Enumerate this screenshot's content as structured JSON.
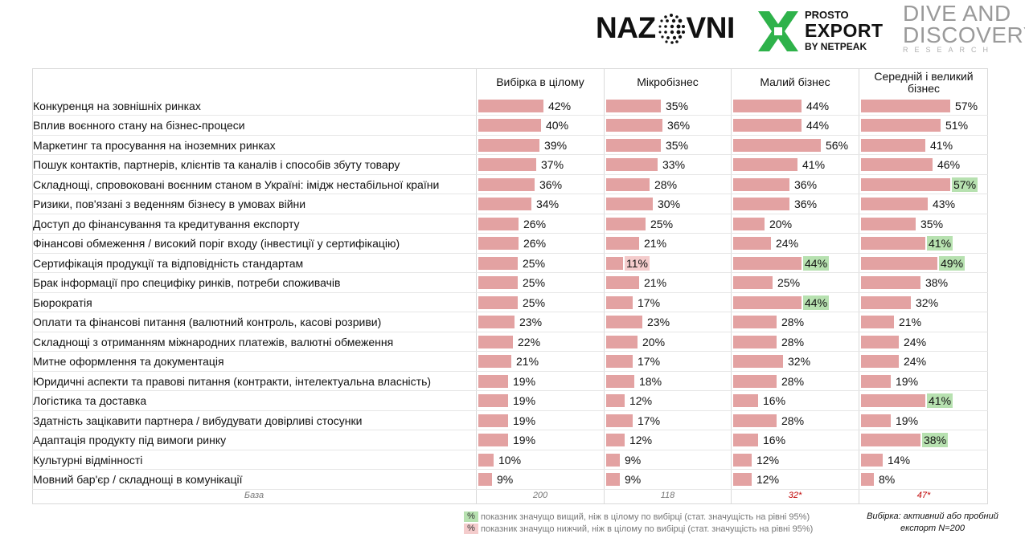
{
  "logos": {
    "nazovni": "NAZOVNI",
    "prosto_line1": "PROSTO",
    "prosto_line2": "EXPORT",
    "prosto_line3": "BY NETPEAK",
    "dive_line1": "DIVE AND",
    "dive_line2": "DISCOVERY",
    "dive_line3": "RESEARCH"
  },
  "colors": {
    "bar": "#e3a2a2",
    "higher": "#b7e1b0",
    "lower": "#f4cccc"
  },
  "chart_data": {
    "type": "bar",
    "columns": [
      "Вибірка в цілому",
      "Мікробізнес",
      "Малий бізнес",
      "Середній і великий бізнес"
    ],
    "categories": [
      "Конкуренця на зовнішніх ринках",
      "Вплив воєнного стану на бізнес-процеси",
      "Маркетинг та просування на іноземних ринках",
      "Пошук контактів, партнерів, клієнтів та каналів і способів збуту товару",
      "Складнощі, спровоковані воєнним станом в Україні: імідж нестабільної країни",
      "Ризики, пов'язані з веденням бізнесу в умовах війни",
      "Доступ до фінансування та кредитування експорту",
      "Фінансові обмеження / високий поріг входу (інвестиції у сертифікацію)",
      "Сертифікація продукції та відповідність стандартам",
      "Брак інформації про специфіку ринків, потреби споживачів",
      "Бюрократія",
      "Оплати та фінансові питання (валютний контроль, касові розриви)",
      "Складнощі з отриманням міжнародних платежів, валютні обмеження",
      "Митне оформлення та документація",
      "Юридичні аспекти та правові питання (контракти, інтелектуальна власність)",
      "Логістика та доставка",
      "Здатність зацікавити партнера / вибудувати довірливі стосунки",
      "Адаптація продукту під вимоги ринку",
      "Культурні відмінності",
      "Мовний бар'єр / складнощі в комунікації"
    ],
    "series": [
      {
        "name": "Вибірка в цілому",
        "values": [
          42,
          40,
          39,
          37,
          36,
          34,
          26,
          26,
          25,
          25,
          25,
          23,
          22,
          21,
          19,
          19,
          19,
          19,
          10,
          9
        ]
      },
      {
        "name": "Мікробізнес",
        "values": [
          35,
          36,
          35,
          33,
          28,
          30,
          25,
          21,
          11,
          21,
          17,
          23,
          20,
          17,
          18,
          12,
          17,
          12,
          9,
          9
        ]
      },
      {
        "name": "Малий бізнес",
        "values": [
          44,
          44,
          56,
          41,
          36,
          36,
          20,
          24,
          44,
          25,
          44,
          28,
          28,
          32,
          28,
          16,
          28,
          16,
          12,
          12
        ]
      },
      {
        "name": "Середній і великий бізнес",
        "values": [
          57,
          51,
          41,
          46,
          57,
          43,
          35,
          41,
          49,
          38,
          32,
          21,
          24,
          24,
          19,
          41,
          19,
          38,
          14,
          8
        ]
      }
    ],
    "significance": {
      "higher": [
        [
          2,
          8
        ],
        [
          2,
          10
        ],
        [
          3,
          4
        ],
        [
          3,
          7
        ],
        [
          3,
          8
        ],
        [
          3,
          15
        ],
        [
          3,
          17
        ]
      ],
      "lower": [
        [
          1,
          8
        ]
      ]
    },
    "base_label": "База",
    "bases": [
      "200",
      "118",
      "32*",
      "47*"
    ],
    "base_flagged": [
      false,
      false,
      true,
      true
    ],
    "value_suffix": "%",
    "xlim": [
      0,
      100
    ]
  },
  "legend": {
    "symbol": "%",
    "higher": "показник значущо вищий, ніж в цілому по вибірці (стат. значущість на рівні 95%)",
    "lower": "показник значущо нижчий, ніж в цілому по вибірці (стат. значущість на рівні 95%)"
  },
  "note": "Вибірка: активний або пробний експорт N=200"
}
